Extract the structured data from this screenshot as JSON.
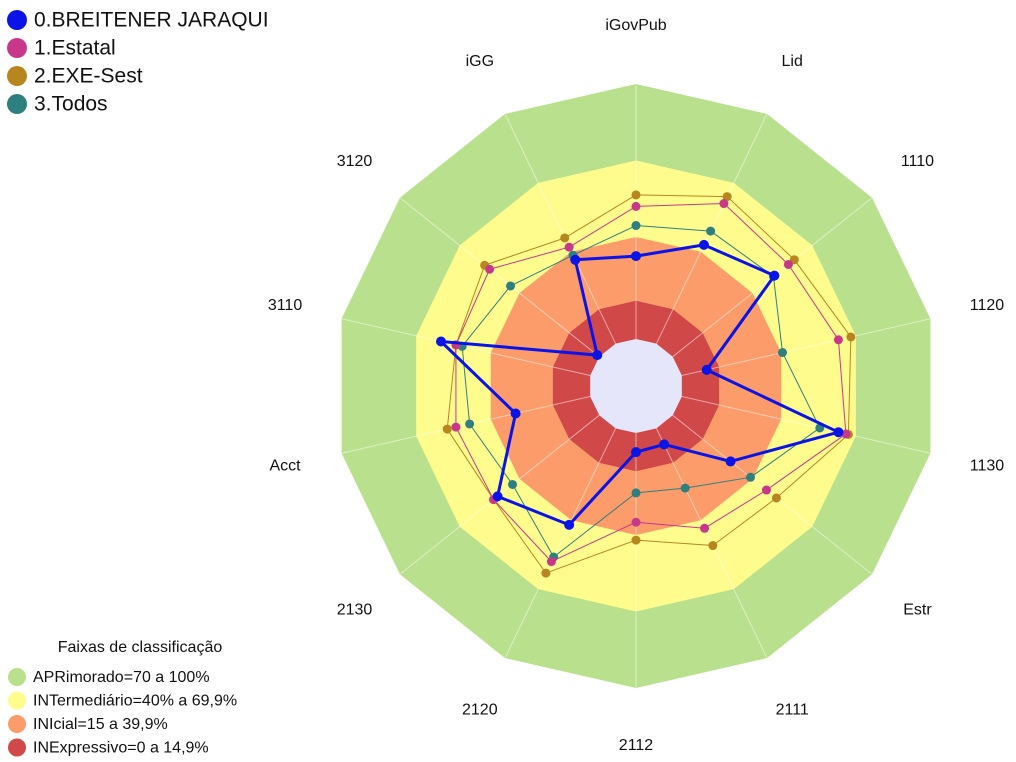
{
  "chart_data": {
    "type": "radar",
    "categories": [
      "iGovPub",
      "Lid",
      "1110",
      "1120",
      "1130",
      "Estr",
      "2111",
      "2112",
      "2120",
      "2130",
      "Acct",
      "3110",
      "3120",
      "iGG"
    ],
    "rlim": [
      0,
      100
    ],
    "series": [
      {
        "name": "0.BREITENER JARAQUI",
        "color": "#0a14e6",
        "values": [
          32.5,
          43,
          51,
          10,
          63,
          29,
          7,
          7.5,
          42,
          51,
          30,
          60,
          1,
          36.5
        ]
      },
      {
        "name": "1.Estatal",
        "color": "#c8388a",
        "values": [
          52,
          61,
          58,
          63,
          66,
          47,
          43.5,
          35,
          58,
          53,
          54,
          54,
          55,
          42
        ]
      },
      {
        "name": "2.EXE-Sest",
        "color": "#b8861e",
        "values": [
          56.5,
          64,
          61,
          68,
          67,
          52,
          51,
          42,
          63,
          53,
          57.5,
          54,
          57.5,
          46
        ]
      },
      {
        "name": "3.Todos",
        "color": "#2e8080",
        "values": [
          44.5,
          49,
          50.5,
          40.5,
          55.5,
          39,
          26,
          23.5,
          56,
          43.5,
          48.5,
          51.5,
          44.5,
          38.5
        ]
      }
    ],
    "bands_title": "Faixas de classificação",
    "bands": [
      {
        "label": "APRimorado=70 a 100%",
        "color": "#b9e08c",
        "range": [
          70,
          100
        ]
      },
      {
        "label": "INTermediário=40% a 69,9%",
        "color": "#fffc8e",
        "range": [
          40,
          70
        ]
      },
      {
        "label": "INIcial=15 a 39,9%",
        "color": "#fb9c6a",
        "range": [
          15,
          40
        ]
      },
      {
        "label": "INExpressivo=0 a 14,9%",
        "color": "#d04848",
        "range": [
          0,
          15
        ]
      }
    ]
  }
}
